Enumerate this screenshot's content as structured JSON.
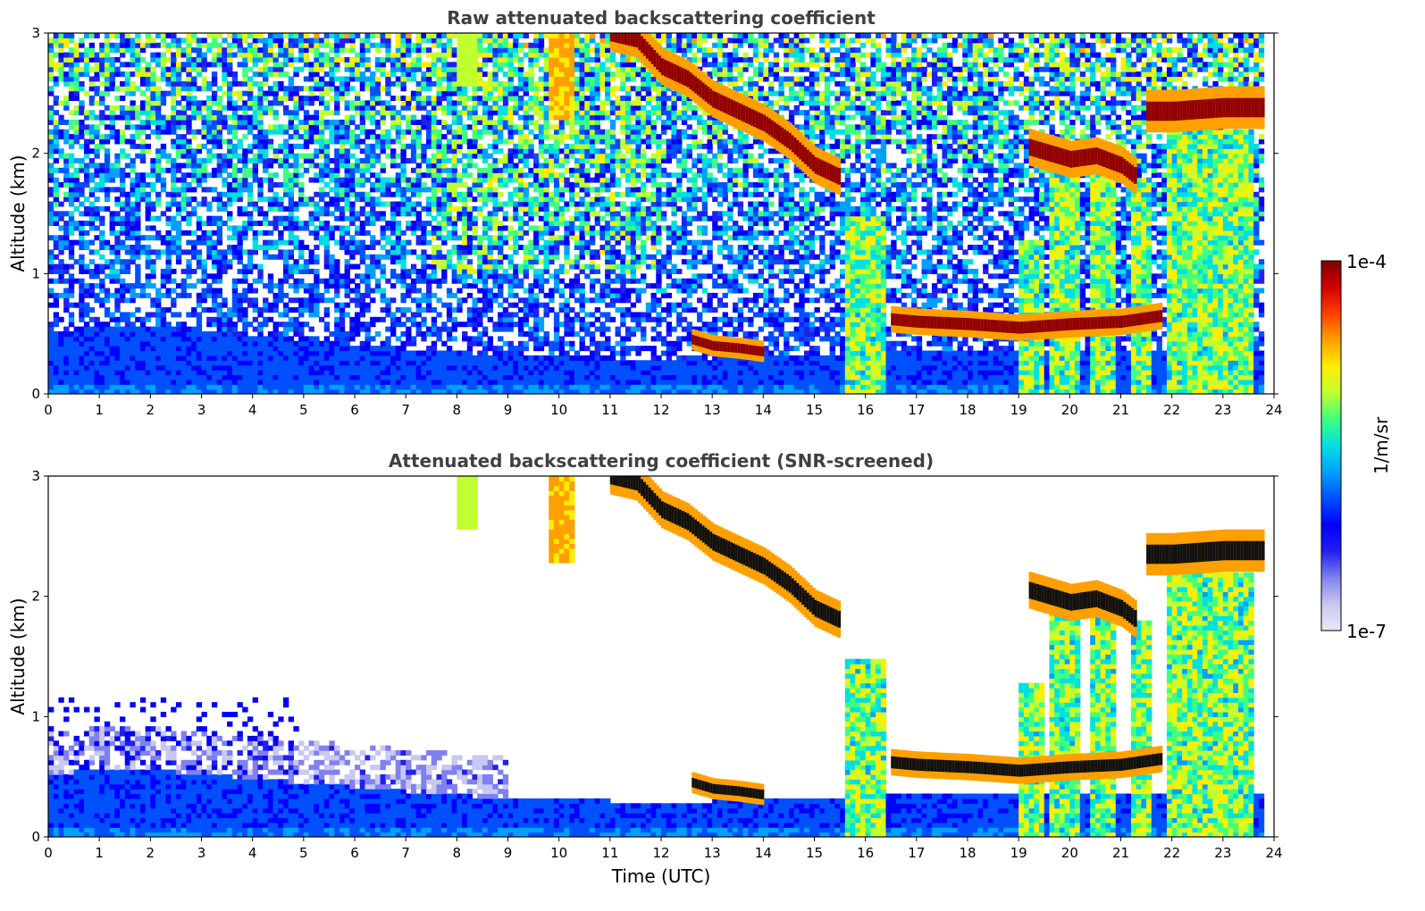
{
  "chart_data": [
    {
      "type": "heatmap",
      "title": "Raw attenuated backscattering coefficient",
      "xlabel": "",
      "ylabel": "Altitude (km)",
      "xlim": [
        0,
        24
      ],
      "ylim": [
        0,
        3
      ],
      "xticks": [
        "0",
        "1",
        "2",
        "3",
        "4",
        "5",
        "6",
        "7",
        "8",
        "9",
        "10",
        "11",
        "12",
        "13",
        "14",
        "15",
        "16",
        "17",
        "18",
        "19",
        "20",
        "21",
        "22",
        "23",
        "24"
      ],
      "yticks": [
        "0",
        "1",
        "2",
        "3"
      ],
      "screening": "raw",
      "features": {
        "boundary_layer_top_km": [
          [
            0,
            0.52
          ],
          [
            1.5,
            0.58
          ],
          [
            3,
            0.52
          ],
          [
            5,
            0.45
          ],
          [
            7,
            0.38
          ],
          [
            9,
            0.32
          ],
          [
            11,
            0.3
          ],
          [
            13,
            0.3
          ],
          [
            15,
            0.32
          ],
          [
            16,
            0.35
          ],
          [
            24,
            0.35
          ]
        ],
        "high_cloud_layer": [
          [
            11,
            3.0
          ],
          [
            11.5,
            2.95
          ],
          [
            12,
            2.72
          ],
          [
            12.5,
            2.62
          ],
          [
            13,
            2.45
          ],
          [
            13.5,
            2.35
          ],
          [
            14,
            2.25
          ],
          [
            14.5,
            2.1
          ],
          [
            15,
            1.9
          ],
          [
            15.5,
            1.8
          ]
        ],
        "mid_cloud_layer_right": [
          [
            19.2,
            2.05
          ],
          [
            20,
            1.95
          ],
          [
            20.5,
            1.98
          ],
          [
            21,
            1.9
          ],
          [
            21.3,
            1.8
          ]
        ],
        "upper_cloud_right": [
          [
            21.5,
            2.35
          ],
          [
            22,
            2.35
          ],
          [
            23,
            2.38
          ],
          [
            23.8,
            2.38
          ]
        ],
        "low_cloud_layer": [
          [
            16.5,
            0.62
          ],
          [
            17,
            0.6
          ],
          [
            18,
            0.58
          ],
          [
            19,
            0.55
          ],
          [
            20,
            0.58
          ],
          [
            21,
            0.6
          ],
          [
            21.8,
            0.65
          ]
        ],
        "low_cloud_midday": [
          [
            12.6,
            0.45
          ],
          [
            13,
            0.4
          ],
          [
            13.5,
            0.38
          ],
          [
            14,
            0.35
          ]
        ]
      }
    },
    {
      "type": "heatmap",
      "title": "Attenuated backscattering coefficient (SNR-screened)",
      "xlabel": "Time (UTC)",
      "ylabel": "Altitude (km)",
      "xlim": [
        0,
        24
      ],
      "ylim": [
        0,
        3
      ],
      "xticks": [
        "0",
        "1",
        "2",
        "3",
        "4",
        "5",
        "6",
        "7",
        "8",
        "9",
        "10",
        "11",
        "12",
        "13",
        "14",
        "15",
        "16",
        "17",
        "18",
        "19",
        "20",
        "21",
        "22",
        "23",
        "24"
      ],
      "yticks": [
        "0",
        "1",
        "2",
        "3"
      ],
      "screening": "snr",
      "colorbar": {
        "label": "1/m/sr",
        "max_label": "1e-4",
        "min_label": "1e-7",
        "colormap": [
          "#e8e8f8",
          "#c8c8f0",
          "#8080f0",
          "#2020f0",
          "#0000ff",
          "#0050ff",
          "#00a0ff",
          "#00e0e0",
          "#40ff80",
          "#c0ff30",
          "#ffee00",
          "#ffa000",
          "#ff4000",
          "#d00000",
          "#800000"
        ]
      }
    }
  ]
}
